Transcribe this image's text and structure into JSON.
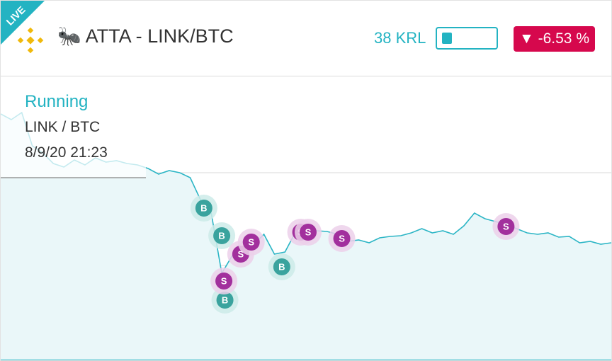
{
  "header": {
    "live": "LIVE",
    "icon": "🐜",
    "title": "ATTA - LINK/BTC",
    "balance": "38 KRL",
    "arrow": "▼",
    "change": "-6.53 %"
  },
  "status": {
    "state": "Running",
    "pair": "LINK / BTC",
    "time": "8/9/20 21:23"
  },
  "chart_data": {
    "type": "line",
    "color": "#2bb5c5",
    "ylim": [
      0,
      398
    ],
    "values": [
      348,
      340,
      350,
      303,
      293,
      278,
      273,
      283,
      276,
      286,
      280,
      282,
      278,
      276,
      271,
      263,
      268,
      265,
      258,
      226,
      208,
      123,
      148,
      168,
      163,
      178,
      150,
      153,
      181,
      186,
      183,
      182,
      178,
      168,
      170,
      166,
      173,
      175,
      176,
      180,
      186,
      180,
      183,
      178,
      190,
      208,
      200,
      196,
      192,
      186,
      180,
      178,
      180,
      174,
      175,
      166,
      168,
      164,
      166
    ],
    "trades": [
      {
        "side": "B",
        "at": 19.3,
        "value": 215
      },
      {
        "side": "B",
        "at": 21.0,
        "value": 176
      },
      {
        "side": "B",
        "at": 26.7,
        "value": 132
      },
      {
        "side": "B",
        "at": 21.3,
        "value": 85
      },
      {
        "side": "S",
        "at": 21.2,
        "value": 112
      },
      {
        "side": "S",
        "at": 22.8,
        "value": 150
      },
      {
        "side": "S",
        "at": 23.8,
        "value": 167
      },
      {
        "side": "S",
        "at": 28.5,
        "value": 181
      },
      {
        "side": "S",
        "at": 29.2,
        "value": 181
      },
      {
        "side": "S",
        "at": 32.4,
        "value": 172
      },
      {
        "side": "S",
        "at": 48.0,
        "value": 189
      }
    ]
  }
}
